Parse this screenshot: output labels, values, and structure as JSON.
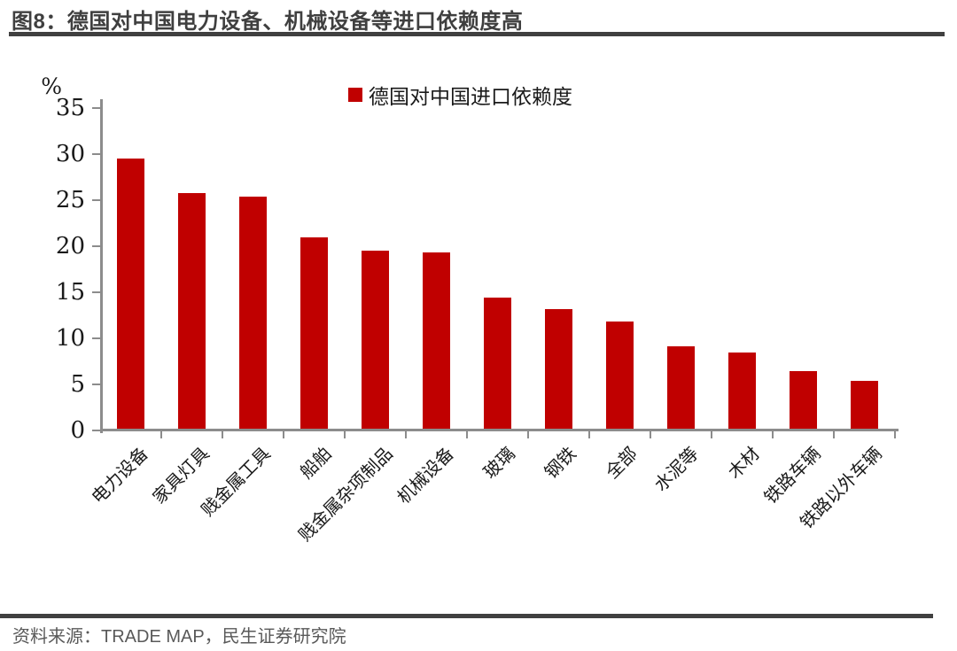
{
  "header": {
    "title": "图8：德国对中国电力设备、机械设备等进口依赖度高"
  },
  "footer": {
    "source": "资料来源：TRADE MAP，民生证券研究院"
  },
  "chart_data": {
    "type": "bar",
    "title": "图8：德国对中国电力设备、机械设备等进口依赖度高",
    "legend": [
      "德国对中国进口依赖度"
    ],
    "legend_position": "top-center",
    "ylabel": "%",
    "xlabel": "",
    "categories": [
      "电力设备",
      "家具灯具",
      "贱金属工具",
      "船舶",
      "贱金属杂项制品",
      "机械设备",
      "玻璃",
      "钢铁",
      "全部",
      "水泥等",
      "木材",
      "铁路车辆",
      "铁路以外车辆"
    ],
    "values": [
      29.5,
      25.8,
      25.4,
      21.0,
      19.5,
      19.3,
      14.4,
      13.2,
      11.8,
      9.1,
      8.5,
      6.4,
      5.4
    ],
    "ylim": [
      0,
      35
    ],
    "yticks": [
      0,
      5,
      10,
      15,
      20,
      25,
      30,
      35
    ],
    "grid": false,
    "bar_color": "#c00000",
    "axis_color": "#8c8c8c"
  }
}
